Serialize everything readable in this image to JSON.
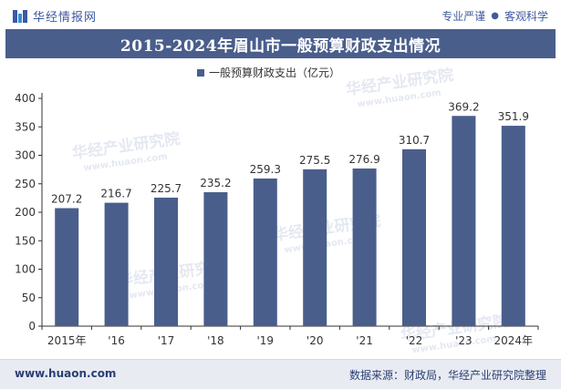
{
  "header": {
    "brand_name": "华经情报网",
    "tagline_left": "专业严谨",
    "tagline_right": "客观科学"
  },
  "watermark": {
    "name": "华经产业研究院",
    "site": "www.huaon.com"
  },
  "chart_data": {
    "type": "bar",
    "title": "2015-2024年眉山市一般预算财政支出情况",
    "legend": "一般预算财政支出（亿元）",
    "legend_position": "top-center",
    "categories": [
      "2015年",
      "'16",
      "'17",
      "'18",
      "'19",
      "'20",
      "'21",
      "'22",
      "'23",
      "2024年"
    ],
    "series": [
      {
        "name": "一般预算财政支出（亿元）",
        "values": [
          207.2,
          216.7,
          225.7,
          235.2,
          259.3,
          275.5,
          276.9,
          310.7,
          369.2,
          351.9
        ]
      }
    ],
    "value_labels": [
      "207.2",
      "216.7",
      "225.7",
      "235.2",
      "259.3",
      "275.5",
      "276.9",
      "310.7",
      "369.2",
      "351.9"
    ],
    "y_ticks": [
      "0",
      "50",
      "100",
      "150",
      "200",
      "250",
      "300",
      "350",
      "400"
    ],
    "ylim": [
      0,
      400
    ],
    "grid": false,
    "colors": {
      "bar": "#4a5e8c",
      "title_bg": "#4a5e8c",
      "accent": "#3d5a9e"
    }
  },
  "footer": {
    "site": "www.huaon.com",
    "source": "数据来源：财政局，华经产业研究院整理"
  }
}
